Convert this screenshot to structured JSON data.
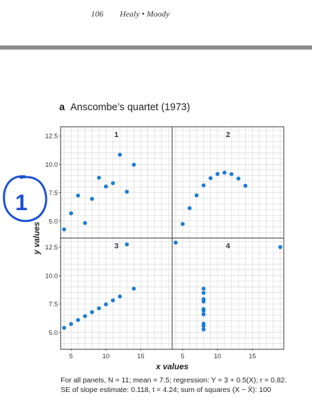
{
  "running_head": {
    "page_number": "106",
    "authors": "Healy • Moody"
  },
  "figure": {
    "letter": "a",
    "title": "Anscombe’s quartet (1973)"
  },
  "caption": {
    "line1": "For all panels, N = 11; mean = 7.5; regression: Y = 3 + 0.5(X); r = 0.82.",
    "line2": "SE of slope estimate: 0.118, t = 4.24; sum of squares (X − X̄): 100"
  },
  "annotation": {
    "symbol": "1"
  },
  "colors": {
    "points": "#1c7cd5",
    "grid": "#d9d9d9",
    "frame": "#333333",
    "annotation": "#1a4fd6"
  },
  "chart_data": {
    "type": "scatter",
    "xlabel": "x values",
    "ylabel": "y values",
    "xlim": [
      3.5,
      19.5
    ],
    "ylim": [
      3.5,
      13.3
    ],
    "xticks": [
      5,
      10,
      15
    ],
    "xtick_labels": [
      "5",
      "10",
      "15"
    ],
    "yticks": [
      5,
      7.5,
      10,
      12.5
    ],
    "ytick_labels": [
      "5.0",
      "7.5",
      "10.0",
      "12.5"
    ],
    "grid": true,
    "legend": "none",
    "panels": [
      {
        "name": "1",
        "x": [
          10,
          8,
          13,
          9,
          11,
          14,
          6,
          4,
          12,
          7,
          5
        ],
        "y": [
          8.04,
          6.95,
          7.58,
          8.81,
          8.33,
          9.96,
          7.24,
          4.26,
          10.84,
          4.82,
          5.68
        ]
      },
      {
        "name": "2",
        "x": [
          10,
          8,
          13,
          9,
          11,
          14,
          6,
          4,
          12,
          7,
          5
        ],
        "y": [
          9.14,
          8.14,
          8.74,
          8.77,
          9.26,
          8.1,
          6.13,
          3.1,
          9.13,
          7.26,
          4.74
        ]
      },
      {
        "name": "3",
        "x": [
          10,
          8,
          13,
          9,
          11,
          14,
          6,
          4,
          12,
          7,
          5
        ],
        "y": [
          7.46,
          6.77,
          12.74,
          7.11,
          7.81,
          8.84,
          6.08,
          5.39,
          8.15,
          6.42,
          5.73
        ]
      },
      {
        "name": "4",
        "x": [
          8,
          8,
          8,
          8,
          8,
          8,
          8,
          19,
          8,
          8,
          8
        ],
        "y": [
          6.58,
          5.76,
          7.71,
          8.84,
          8.47,
          7.04,
          5.25,
          12.5,
          5.56,
          7.91,
          6.89
        ]
      }
    ]
  }
}
